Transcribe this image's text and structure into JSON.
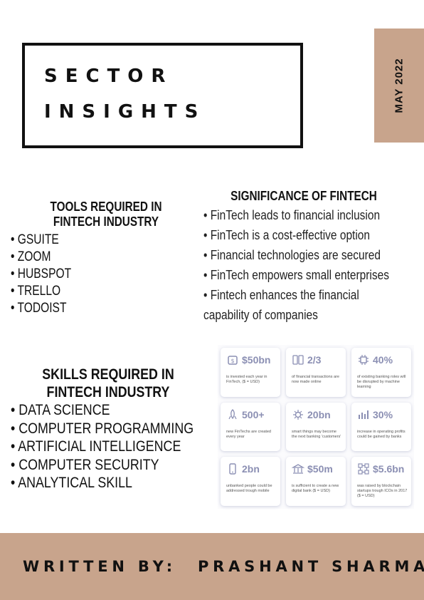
{
  "header": {
    "title_line1": "SECTOR",
    "title_line2": "INSIGHTS",
    "date": "MAY 2022"
  },
  "tools": {
    "title": "TOOLS REQUIRED IN FINTECH INDUSTRY",
    "items": [
      "• GSUITE",
      "• ZOOM",
      "• HUBSPOT",
      "• TRELLO",
      "• TODOIST"
    ]
  },
  "significance": {
    "title": "SIGNIFICANCE OF FINTECH",
    "items": [
      "• FinTech leads to financial inclusion",
      "• FinTech is a cost-effective option",
      "• Financial technologies are secured",
      "• FinTech empowers small enterprises",
      "• Fintech enhances the financial",
      "capability of companies"
    ]
  },
  "skills": {
    "title": "SKILLS REQUIRED IN FINTECH INDUSTRY",
    "items": [
      "• DATA SCIENCE",
      "• COMPUTER PROGRAMMING",
      "• ARTIFICIAL INTELLIGENCE",
      "• COMPUTER SECURITY",
      "• ANALYTICAL SKILL"
    ]
  },
  "stats": [
    {
      "value": "$50bn",
      "desc": "is invested each year in FinTech, ($ = USD)",
      "icon": "money-icon"
    },
    {
      "value": "2/3",
      "desc": "of financial transactions are now made online",
      "icon": "cards-icon"
    },
    {
      "value": "40%",
      "desc": "of existing banking roles will be disrupted by machine learning",
      "icon": "chip-icon"
    },
    {
      "value": "500+",
      "desc": "new FinTechs are created every year",
      "icon": "rocket-icon"
    },
    {
      "value": "20bn",
      "desc": "smart things may become the next banking 'customers'",
      "icon": "gear-icon"
    },
    {
      "value": "30%",
      "desc": "increase in operating profits could be gained by banks",
      "icon": "growth-chart-icon"
    },
    {
      "value": "2bn",
      "desc": "unbanked people could be addressed trough mobile",
      "icon": "mobile-icon"
    },
    {
      "value": "$50m",
      "desc": "is sufficient to create a new digital bank ($ = USD)",
      "icon": "bank-icon"
    },
    {
      "value": "$5.6bn",
      "desc": "was raised by blockchain startups trough ICOs in 2017 ($ = USD)",
      "icon": "blockchain-icon"
    }
  ],
  "footer": {
    "label": "WRITTEN BY:",
    "author": "PRASHANT SHARMA"
  },
  "colors": {
    "accent": "#c8a48c",
    "stat_value": "#8b8fb3"
  }
}
